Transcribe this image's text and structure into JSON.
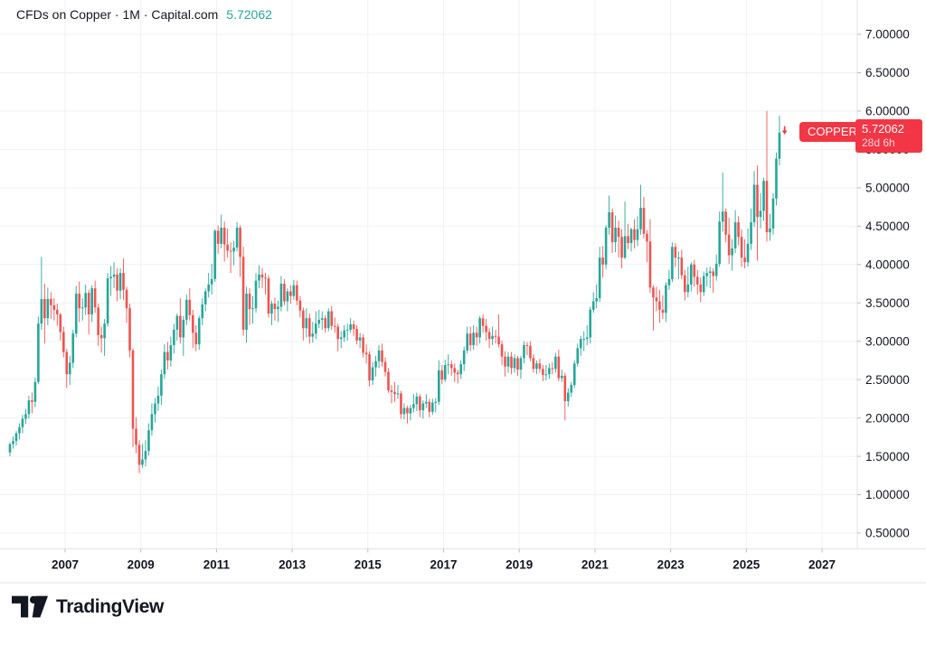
{
  "header": {
    "title": "CFDs on Copper · 1M · Capital.com",
    "last_price": "5.72062"
  },
  "price_axis_label": {
    "symbol_badge": "COPPER",
    "price": "5.72062",
    "countdown": "28d 6h"
  },
  "footer": {
    "brand": "TradingView"
  },
  "colors": {
    "up": "#26a69a",
    "down": "#f05350",
    "label_bg": "#f23645",
    "quote": "#26a69a",
    "text": "#131722",
    "grid": "#eef1f5",
    "axis_line": "#e0e3eb",
    "tick": "#b8bcc5"
  },
  "chart_data": {
    "type": "candlestick",
    "title": "CFDs on Copper · 1M · Capital.com",
    "symbol": "COPPER",
    "description": "CFDs on Copper",
    "interval": "1M",
    "exchange": "Capital.com",
    "last_price": 5.72062,
    "countdown": "28d 6h",
    "start_month": "2005-07",
    "months_per_candle": 1,
    "grid": true,
    "x_axis": {
      "tick_labels": [
        "2007",
        "2009",
        "2011",
        "2013",
        "2015",
        "2017",
        "2019",
        "2021",
        "2023",
        "2025",
        "2027"
      ]
    },
    "y_axis": {
      "tick_labels": [
        "7.00000",
        "6.50000",
        "6.00000",
        "5.50000",
        "5.00000",
        "4.50000",
        "4.00000",
        "3.50000",
        "3.00000",
        "2.50000",
        "2.00000",
        "1.50000",
        "1.00000",
        "0.50000"
      ],
      "tick_values": [
        7.0,
        6.5,
        6.0,
        5.5,
        5.0,
        4.5,
        4.0,
        3.5,
        3.0,
        2.5,
        2.0,
        1.5,
        1.0,
        0.5
      ],
      "min": 0.28,
      "max": 7.45,
      "side": "right"
    },
    "ohlc": [
      [
        1.55,
        1.68,
        1.5,
        1.66
      ],
      [
        1.66,
        1.76,
        1.6,
        1.7
      ],
      [
        1.7,
        1.83,
        1.64,
        1.8
      ],
      [
        1.8,
        1.93,
        1.72,
        1.88
      ],
      [
        1.88,
        2.04,
        1.8,
        1.99
      ],
      [
        1.99,
        2.12,
        1.92,
        2.05
      ],
      [
        2.05,
        2.29,
        1.99,
        2.23
      ],
      [
        2.23,
        2.33,
        2.06,
        2.21
      ],
      [
        2.21,
        2.53,
        2.14,
        2.47
      ],
      [
        2.47,
        3.32,
        2.44,
        3.23
      ],
      [
        3.23,
        4.1,
        3.15,
        3.55
      ],
      [
        3.55,
        3.75,
        2.97,
        3.3
      ],
      [
        3.3,
        3.7,
        3.21,
        3.55
      ],
      [
        3.55,
        3.64,
        3.29,
        3.47
      ],
      [
        3.47,
        3.56,
        3.27,
        3.41
      ],
      [
        3.41,
        3.49,
        3.2,
        3.35
      ],
      [
        3.35,
        3.37,
        3.01,
        3.12
      ],
      [
        3.12,
        3.19,
        2.79,
        2.86
      ],
      [
        2.86,
        2.9,
        2.39,
        2.57
      ],
      [
        2.57,
        2.81,
        2.43,
        2.72
      ],
      [
        2.72,
        3.15,
        2.65,
        3.1
      ],
      [
        3.1,
        3.72,
        3.05,
        3.62
      ],
      [
        3.62,
        3.78,
        3.25,
        3.43
      ],
      [
        3.43,
        3.56,
        3.27,
        3.44
      ],
      [
        3.44,
        3.74,
        3.34,
        3.63
      ],
      [
        3.63,
        3.67,
        3.09,
        3.35
      ],
      [
        3.35,
        3.73,
        3.25,
        3.69
      ],
      [
        3.69,
        3.79,
        3.37,
        3.44
      ],
      [
        3.44,
        3.49,
        2.94,
        3.08
      ],
      [
        3.08,
        3.19,
        2.85,
        3.04
      ],
      [
        3.04,
        3.29,
        2.81,
        3.23
      ],
      [
        3.23,
        3.89,
        3.19,
        3.82
      ],
      [
        3.82,
        3.98,
        3.59,
        3.84
      ],
      [
        3.84,
        4.03,
        3.69,
        3.87
      ],
      [
        3.87,
        3.95,
        3.52,
        3.66
      ],
      [
        3.66,
        3.95,
        3.55,
        3.89
      ],
      [
        3.89,
        4.08,
        3.54,
        3.67
      ],
      [
        3.67,
        3.71,
        3.24,
        3.43
      ],
      [
        3.43,
        3.49,
        2.79,
        2.88
      ],
      [
        2.88,
        2.91,
        1.62,
        1.86
      ],
      [
        1.86,
        2.01,
        1.54,
        1.65
      ],
      [
        1.65,
        1.71,
        1.28,
        1.39
      ],
      [
        1.39,
        1.66,
        1.35,
        1.46
      ],
      [
        1.46,
        1.71,
        1.37,
        1.57
      ],
      [
        1.57,
        1.93,
        1.51,
        1.84
      ],
      [
        1.84,
        2.19,
        1.77,
        2.05
      ],
      [
        2.05,
        2.26,
        1.94,
        2.19
      ],
      [
        2.19,
        2.41,
        2.09,
        2.29
      ],
      [
        2.29,
        2.63,
        2.17,
        2.57
      ],
      [
        2.57,
        2.96,
        2.51,
        2.86
      ],
      [
        2.86,
        2.99,
        2.63,
        2.75
      ],
      [
        2.75,
        3.06,
        2.67,
        2.95
      ],
      [
        2.95,
        3.23,
        2.84,
        3.15
      ],
      [
        3.15,
        3.36,
        3.01,
        3.33
      ],
      [
        3.33,
        3.56,
        2.97,
        3.05
      ],
      [
        3.05,
        3.33,
        2.81,
        3.28
      ],
      [
        3.28,
        3.61,
        3.21,
        3.54
      ],
      [
        3.54,
        3.69,
        3.27,
        3.34
      ],
      [
        3.34,
        3.41,
        2.91,
        3.11
      ],
      [
        3.11,
        3.21,
        2.87,
        2.96
      ],
      [
        2.96,
        3.33,
        2.89,
        3.3
      ],
      [
        3.3,
        3.56,
        3.21,
        3.48
      ],
      [
        3.48,
        3.69,
        3.39,
        3.65
      ],
      [
        3.65,
        3.89,
        3.57,
        3.74
      ],
      [
        3.74,
        4.01,
        3.61,
        3.81
      ],
      [
        3.81,
        4.46,
        3.77,
        4.44
      ],
      [
        4.44,
        4.51,
        4.14,
        4.27
      ],
      [
        4.27,
        4.65,
        4.21,
        4.48
      ],
      [
        4.48,
        4.56,
        4.04,
        4.26
      ],
      [
        4.26,
        4.47,
        4.09,
        4.18
      ],
      [
        4.18,
        4.29,
        3.89,
        4.17
      ],
      [
        4.17,
        4.31,
        3.99,
        4.22
      ],
      [
        4.22,
        4.55,
        4.17,
        4.48
      ],
      [
        4.48,
        4.51,
        3.84,
        4.1
      ],
      [
        4.1,
        4.23,
        3.07,
        3.15
      ],
      [
        3.15,
        3.71,
        2.98,
        3.62
      ],
      [
        3.62,
        3.69,
        3.21,
        3.42
      ],
      [
        3.42,
        3.59,
        3.23,
        3.43
      ],
      [
        3.43,
        3.89,
        3.37,
        3.79
      ],
      [
        3.79,
        3.99,
        3.69,
        3.87
      ],
      [
        3.87,
        3.95,
        3.69,
        3.83
      ],
      [
        3.83,
        3.89,
        3.61,
        3.82
      ],
      [
        3.82,
        3.86,
        3.31,
        3.36
      ],
      [
        3.36,
        3.53,
        3.21,
        3.49
      ],
      [
        3.49,
        3.57,
        3.27,
        3.42
      ],
      [
        3.42,
        3.53,
        3.25,
        3.45
      ],
      [
        3.45,
        3.85,
        3.39,
        3.75
      ],
      [
        3.75,
        3.81,
        3.47,
        3.52
      ],
      [
        3.52,
        3.69,
        3.39,
        3.65
      ],
      [
        3.65,
        3.73,
        3.49,
        3.59
      ],
      [
        3.59,
        3.8,
        3.54,
        3.73
      ],
      [
        3.73,
        3.79,
        3.47,
        3.53
      ],
      [
        3.53,
        3.59,
        3.31,
        3.4
      ],
      [
        3.4,
        3.44,
        3.01,
        3.17
      ],
      [
        3.17,
        3.43,
        3.05,
        3.3
      ],
      [
        3.3,
        3.36,
        2.97,
        3.06
      ],
      [
        3.06,
        3.25,
        2.98,
        3.1
      ],
      [
        3.1,
        3.39,
        3.03,
        3.23
      ],
      [
        3.23,
        3.41,
        3.17,
        3.28
      ],
      [
        3.28,
        3.39,
        3.15,
        3.3
      ],
      [
        3.3,
        3.34,
        3.11,
        3.17
      ],
      [
        3.17,
        3.43,
        3.13,
        3.39
      ],
      [
        3.39,
        3.46,
        3.15,
        3.2
      ],
      [
        3.2,
        3.31,
        3.11,
        3.19
      ],
      [
        3.19,
        3.23,
        2.87,
        3.03
      ],
      [
        3.03,
        3.13,
        2.91,
        3.05
      ],
      [
        3.05,
        3.21,
        2.99,
        3.14
      ],
      [
        3.14,
        3.23,
        3.01,
        3.15
      ],
      [
        3.15,
        3.3,
        3.11,
        3.22
      ],
      [
        3.22,
        3.27,
        3.07,
        3.16
      ],
      [
        3.16,
        3.21,
        2.96,
        3.01
      ],
      [
        3.01,
        3.11,
        2.91,
        3.05
      ],
      [
        3.05,
        3.09,
        2.79,
        2.85
      ],
      [
        2.85,
        2.96,
        2.71,
        2.83
      ],
      [
        2.83,
        2.87,
        2.41,
        2.49
      ],
      [
        2.49,
        2.73,
        2.43,
        2.66
      ],
      [
        2.66,
        2.81,
        2.54,
        2.74
      ],
      [
        2.74,
        2.95,
        2.65,
        2.88
      ],
      [
        2.88,
        2.97,
        2.67,
        2.73
      ],
      [
        2.73,
        2.79,
        2.54,
        2.6
      ],
      [
        2.6,
        2.65,
        2.33,
        2.36
      ],
      [
        2.36,
        2.43,
        2.19,
        2.34
      ],
      [
        2.34,
        2.47,
        2.21,
        2.31
      ],
      [
        2.31,
        2.43,
        2.25,
        2.32
      ],
      [
        2.32,
        2.35,
        1.99,
        2.05
      ],
      [
        2.05,
        2.19,
        1.98,
        2.13
      ],
      [
        2.13,
        2.16,
        1.93,
        2.06
      ],
      [
        2.06,
        2.17,
        1.97,
        2.13
      ],
      [
        2.13,
        2.31,
        2.07,
        2.18
      ],
      [
        2.18,
        2.33,
        2.09,
        2.28
      ],
      [
        2.28,
        2.31,
        2.01,
        2.1
      ],
      [
        2.1,
        2.23,
        1.99,
        2.19
      ],
      [
        2.19,
        2.31,
        2.13,
        2.21
      ],
      [
        2.21,
        2.25,
        2.01,
        2.08
      ],
      [
        2.08,
        2.25,
        2.04,
        2.2
      ],
      [
        2.2,
        2.26,
        2.07,
        2.21
      ],
      [
        2.21,
        2.75,
        2.17,
        2.62
      ],
      [
        2.62,
        2.69,
        2.44,
        2.5
      ],
      [
        2.5,
        2.76,
        2.47,
        2.69
      ],
      [
        2.69,
        2.83,
        2.57,
        2.7
      ],
      [
        2.7,
        2.75,
        2.55,
        2.65
      ],
      [
        2.65,
        2.71,
        2.47,
        2.59
      ],
      [
        2.59,
        2.63,
        2.45,
        2.57
      ],
      [
        2.57,
        2.75,
        2.51,
        2.7
      ],
      [
        2.7,
        2.93,
        2.61,
        2.88
      ],
      [
        2.88,
        3.19,
        2.84,
        3.1
      ],
      [
        3.1,
        3.19,
        2.87,
        2.95
      ],
      [
        2.95,
        3.21,
        2.89,
        3.11
      ],
      [
        3.11,
        3.19,
        2.94,
        3.05
      ],
      [
        3.05,
        3.33,
        2.97,
        3.3
      ],
      [
        3.3,
        3.35,
        3.11,
        3.2
      ],
      [
        3.2,
        3.29,
        3.01,
        3.12
      ],
      [
        3.12,
        3.17,
        2.91,
        3.03
      ],
      [
        3.03,
        3.19,
        2.95,
        3.07
      ],
      [
        3.07,
        3.15,
        2.97,
        3.06
      ],
      [
        3.06,
        3.35,
        2.92,
        2.96
      ],
      [
        2.96,
        3.01,
        2.69,
        2.8
      ],
      [
        2.8,
        2.87,
        2.54,
        2.67
      ],
      [
        2.67,
        2.86,
        2.59,
        2.8
      ],
      [
        2.8,
        2.86,
        2.57,
        2.65
      ],
      [
        2.65,
        2.83,
        2.59,
        2.78
      ],
      [
        2.78,
        2.81,
        2.55,
        2.63
      ],
      [
        2.63,
        2.81,
        2.51,
        2.78
      ],
      [
        2.78,
        3.0,
        2.71,
        2.95
      ],
      [
        2.95,
        2.99,
        2.82,
        2.94
      ],
      [
        2.94,
        3.0,
        2.74,
        2.78
      ],
      [
        2.78,
        2.83,
        2.59,
        2.64
      ],
      [
        2.64,
        2.75,
        2.57,
        2.71
      ],
      [
        2.71,
        2.77,
        2.59,
        2.64
      ],
      [
        2.64,
        2.69,
        2.48,
        2.56
      ],
      [
        2.56,
        2.69,
        2.49,
        2.57
      ],
      [
        2.57,
        2.71,
        2.51,
        2.65
      ],
      [
        2.65,
        2.73,
        2.57,
        2.64
      ],
      [
        2.64,
        2.85,
        2.59,
        2.8
      ],
      [
        2.8,
        2.89,
        2.48,
        2.52
      ],
      [
        2.52,
        2.63,
        2.47,
        2.55
      ],
      [
        2.55,
        2.59,
        1.97,
        2.22
      ],
      [
        2.22,
        2.39,
        2.15,
        2.33
      ],
      [
        2.33,
        2.47,
        2.27,
        2.43
      ],
      [
        2.43,
        2.75,
        2.39,
        2.71
      ],
      [
        2.71,
        2.97,
        2.67,
        2.91
      ],
      [
        2.91,
        3.07,
        2.81,
        3.03
      ],
      [
        3.03,
        3.13,
        2.87,
        3.03
      ],
      [
        3.03,
        3.21,
        2.95,
        3.05
      ],
      [
        3.05,
        3.45,
        2.97,
        3.41
      ],
      [
        3.41,
        3.64,
        3.37,
        3.52
      ],
      [
        3.52,
        3.74,
        3.43,
        3.56
      ],
      [
        3.56,
        4.23,
        3.51,
        4.09
      ],
      [
        4.09,
        4.24,
        3.83,
        4.0
      ],
      [
        4.0,
        4.51,
        3.94,
        4.48
      ],
      [
        4.48,
        4.9,
        4.39,
        4.68
      ],
      [
        4.68,
        4.73,
        4.15,
        4.29
      ],
      [
        4.29,
        4.64,
        4.16,
        4.48
      ],
      [
        4.48,
        4.57,
        4.09,
        4.36
      ],
      [
        4.36,
        4.46,
        3.95,
        4.09
      ],
      [
        4.09,
        4.82,
        4.07,
        4.37
      ],
      [
        4.37,
        4.53,
        4.2,
        4.28
      ],
      [
        4.28,
        4.48,
        4.17,
        4.46
      ],
      [
        4.46,
        4.59,
        4.21,
        4.32
      ],
      [
        4.32,
        4.63,
        4.24,
        4.46
      ],
      [
        4.46,
        5.04,
        4.39,
        4.74
      ],
      [
        4.74,
        4.88,
        4.34,
        4.4
      ],
      [
        4.4,
        4.45,
        4.03,
        4.3
      ],
      [
        4.3,
        4.59,
        3.63,
        3.7
      ],
      [
        3.7,
        3.73,
        3.14,
        3.57
      ],
      [
        3.57,
        3.71,
        3.39,
        3.52
      ],
      [
        3.52,
        3.67,
        3.24,
        3.41
      ],
      [
        3.41,
        3.6,
        3.29,
        3.37
      ],
      [
        3.37,
        3.77,
        3.25,
        3.73
      ],
      [
        3.73,
        3.93,
        3.67,
        3.81
      ],
      [
        3.81,
        4.29,
        3.77,
        4.23
      ],
      [
        4.23,
        4.28,
        3.97,
        4.09
      ],
      [
        4.09,
        4.17,
        3.81,
        4.09
      ],
      [
        4.09,
        4.19,
        3.81,
        3.86
      ],
      [
        3.86,
        3.93,
        3.53,
        3.64
      ],
      [
        3.64,
        3.97,
        3.57,
        3.74
      ],
      [
        3.74,
        4.03,
        3.65,
        4.0
      ],
      [
        4.0,
        4.06,
        3.71,
        3.84
      ],
      [
        3.84,
        3.93,
        3.61,
        3.74
      ],
      [
        3.74,
        3.83,
        3.51,
        3.64
      ],
      [
        3.64,
        3.91,
        3.59,
        3.85
      ],
      [
        3.85,
        3.96,
        3.71,
        3.89
      ],
      [
        3.89,
        3.97,
        3.69,
        3.91
      ],
      [
        3.91,
        3.95,
        3.63,
        3.85
      ],
      [
        3.85,
        4.13,
        3.79,
        4.01
      ],
      [
        4.01,
        4.69,
        3.97,
        4.56
      ],
      [
        4.56,
        5.2,
        4.43,
        4.69
      ],
      [
        4.69,
        4.73,
        4.29,
        4.39
      ],
      [
        4.39,
        4.61,
        4.01,
        4.12
      ],
      [
        4.12,
        4.33,
        3.92,
        4.21
      ],
      [
        4.21,
        4.71,
        4.15,
        4.55
      ],
      [
        4.55,
        4.63,
        4.25,
        4.36
      ],
      [
        4.36,
        4.46,
        3.97,
        4.09
      ],
      [
        4.09,
        4.33,
        3.95,
        4.03
      ],
      [
        4.03,
        4.47,
        3.97,
        4.27
      ],
      [
        4.27,
        4.73,
        4.19,
        4.55
      ],
      [
        4.55,
        5.22,
        4.49,
        5.04
      ],
      [
        5.04,
        5.29,
        4.05,
        4.62
      ],
      [
        4.62,
        4.93,
        4.47,
        4.7
      ],
      [
        4.7,
        5.13,
        4.57,
        5.09
      ],
      [
        5.09,
        6.0,
        4.3,
        4.42
      ],
      [
        4.42,
        4.66,
        4.31,
        4.47
      ],
      [
        4.47,
        4.93,
        4.39,
        4.86
      ],
      [
        4.86,
        5.46,
        4.77,
        5.38
      ],
      [
        5.38,
        5.94,
        5.29,
        5.72062
      ]
    ]
  }
}
